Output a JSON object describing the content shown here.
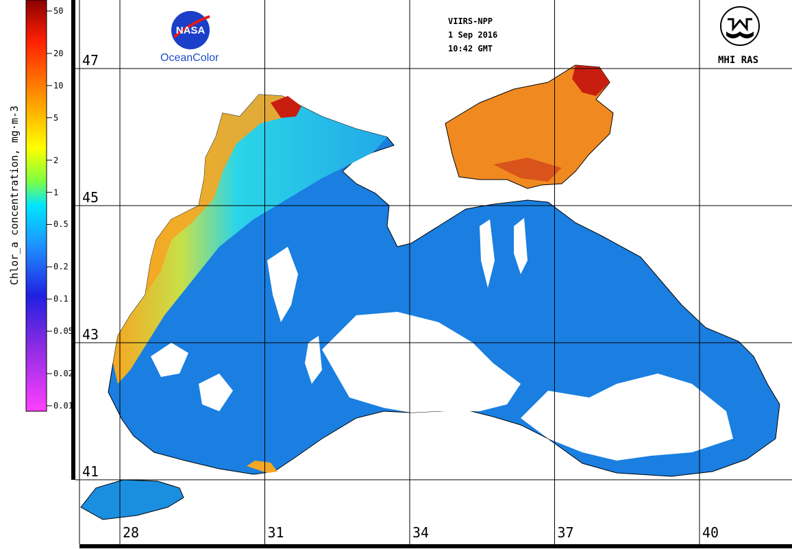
{
  "header": {
    "satellite": "VIIRS-NPP",
    "date": "1 Sep 2016",
    "time": "10:42 GMT"
  },
  "logos": {
    "left_logo_text": "NASA",
    "left_logo_caption": "OceanColor",
    "right_logo_caption": "MHI RAS"
  },
  "colorbar": {
    "title": "Chlor_a concentration, mg·m-3",
    "scale": "log",
    "range": [
      0.01,
      50
    ],
    "ticks": [
      {
        "label": "50",
        "value": 50
      },
      {
        "label": "20",
        "value": 20
      },
      {
        "label": "10",
        "value": 10
      },
      {
        "label": "5",
        "value": 5
      },
      {
        "label": "2",
        "value": 2
      },
      {
        "label": "1",
        "value": 1
      },
      {
        "label": "0.5",
        "value": 0.5
      },
      {
        "label": "0.2",
        "value": 0.2
      },
      {
        "label": "0.1",
        "value": 0.1
      },
      {
        "label": "0.05",
        "value": 0.05
      },
      {
        "label": "0.02",
        "value": 0.02
      },
      {
        "label": "0.01",
        "value": 0.01
      }
    ],
    "colors": [
      "#ff40ff",
      "#8a2be2",
      "#2020e0",
      "#1e90ff",
      "#00e5ff",
      "#7fff40",
      "#ffff00",
      "#ffa500",
      "#ff3000",
      "#8b0000"
    ]
  },
  "grid": {
    "latitudes": [
      {
        "label": "47",
        "value": 47
      },
      {
        "label": "45",
        "value": 45
      },
      {
        "label": "43",
        "value": 43
      },
      {
        "label": "41",
        "value": 41
      }
    ],
    "longitudes": [
      {
        "label": "28",
        "value": 28
      },
      {
        "label": "31",
        "value": 31
      },
      {
        "label": "34",
        "value": 34
      },
      {
        "label": "37",
        "value": 37
      },
      {
        "label": "40",
        "value": 40
      }
    ]
  },
  "map_colors": {
    "open_sea": "#1a7fe0",
    "shelf_sea": "#2bbde8",
    "coastal_high": "#f5a623",
    "azov_sea": "#f08a20",
    "very_high": "#c81e10",
    "cloud_gap": "#ffffff",
    "coastline": "#000000"
  }
}
